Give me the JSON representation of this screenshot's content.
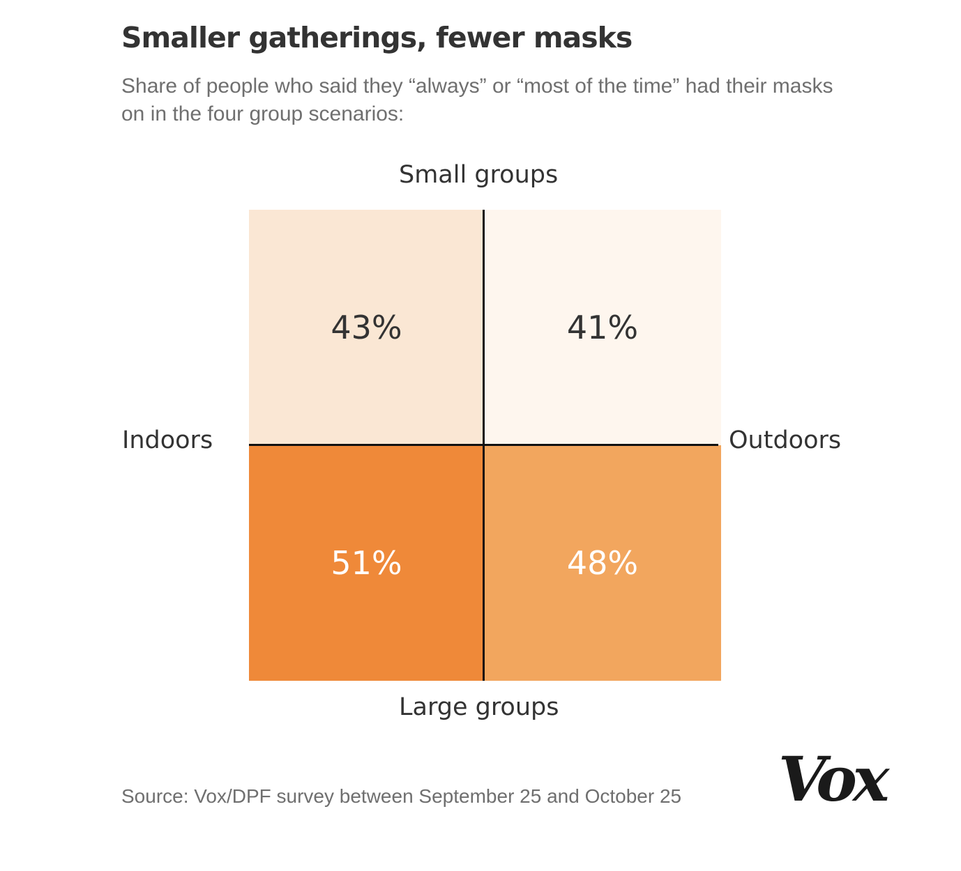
{
  "header": {
    "title": "Smaller gatherings, fewer masks",
    "subtitle": "Share of people who said they “always” or “most of the time” had their masks on in the four group scenarios:"
  },
  "chart_data": {
    "type": "heatmap",
    "title": "Smaller gatherings, fewer masks",
    "subtitle": "Share of people who said they “always” or “most of the time” had their masks on in the four group scenarios:",
    "rows": [
      "Small groups",
      "Large groups"
    ],
    "columns": [
      "Indoors",
      "Outdoors"
    ],
    "values": [
      [
        43,
        41
      ],
      [
        51,
        48
      ]
    ],
    "value_labels": [
      [
        "43%",
        "41%"
      ],
      [
        "51%",
        "48%"
      ]
    ],
    "unit": "%",
    "colors": [
      [
        "#fae7d4",
        "#fef6ee"
      ],
      [
        "#ef8939",
        "#f2a65e"
      ]
    ],
    "text_colors": [
      [
        "#333333",
        "#333333"
      ],
      [
        "#ffffff",
        "#ffffff"
      ]
    ],
    "axis_labels": {
      "top": "Small groups",
      "bottom": "Large groups",
      "left": "Indoors",
      "right": "Outdoors"
    }
  },
  "footer": {
    "source": "Source: Vox/DPF survey between September 25 and October 25",
    "logo": "Vox"
  }
}
